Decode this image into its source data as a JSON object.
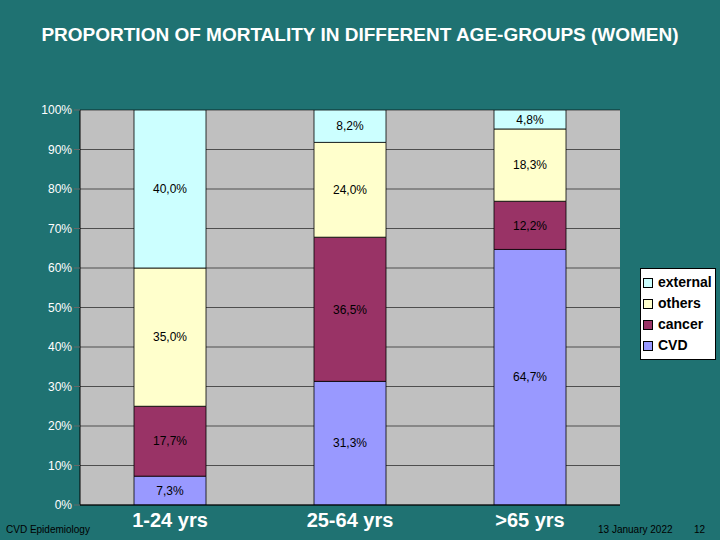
{
  "chart_data": {
    "type": "bar",
    "title": "PROPORTION OF MORTALITY IN DIFFERENT AGE-GROUPS (WOMEN)",
    "categories": [
      "1-24 yrs",
      "25-64 yrs",
      ">65 yrs"
    ],
    "series": [
      {
        "name": "CVD",
        "color": "#9999ff",
        "values": [
          7.3,
          31.3,
          64.7
        ],
        "value_labels": [
          "7,3%",
          "31,3%",
          "64,7%"
        ]
      },
      {
        "name": "cancer",
        "color": "#993366",
        "values": [
          17.7,
          36.5,
          12.2
        ],
        "value_labels": [
          "17,7%",
          "36,5%",
          "12,2%"
        ]
      },
      {
        "name": "others",
        "color": "#ffffcc",
        "values": [
          35.0,
          24.0,
          18.3
        ],
        "value_labels": [
          "35,0%",
          "24,0%",
          "18,3%"
        ]
      },
      {
        "name": "external",
        "color": "#ccffff",
        "values": [
          40.0,
          8.2,
          4.8
        ],
        "value_labels": [
          "40,0%",
          "8,2%",
          "4,8%"
        ]
      }
    ],
    "ylim": [
      0,
      100
    ],
    "yticks": [
      {
        "value": 0,
        "label": "0%"
      },
      {
        "value": 10,
        "label": "10%"
      },
      {
        "value": 20,
        "label": "20%"
      },
      {
        "value": 30,
        "label": "30%"
      },
      {
        "value": 40,
        "label": "40%"
      },
      {
        "value": 50,
        "label": "50%"
      },
      {
        "value": 60,
        "label": "60%"
      },
      {
        "value": 70,
        "label": "70%"
      },
      {
        "value": 80,
        "label": "80%"
      },
      {
        "value": 90,
        "label": "90%"
      },
      {
        "value": 100,
        "label": "100%"
      }
    ],
    "stacked": true,
    "data_labels": true,
    "grid": true,
    "legend": "right",
    "annotations": [
      "CVD Epidemiology",
      "13 January 2022",
      "12"
    ]
  }
}
